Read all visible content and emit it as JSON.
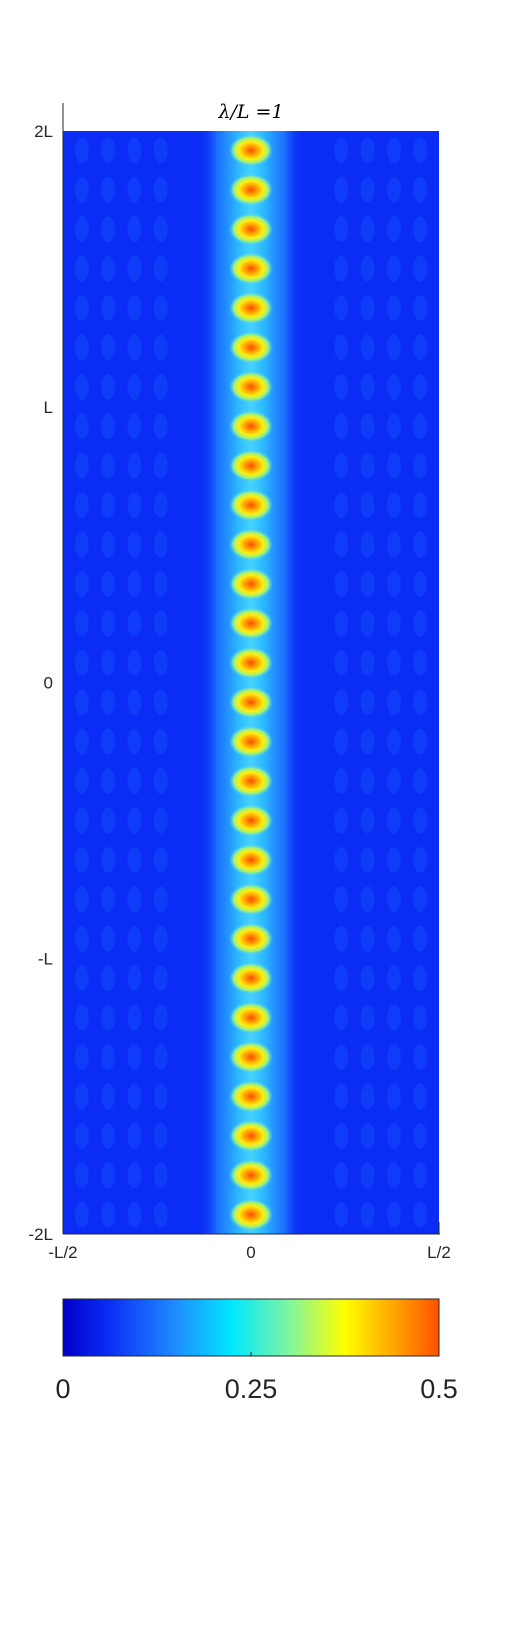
{
  "chart_data": {
    "type": "heatmap",
    "title": "λ/L =1",
    "xlabel": "",
    "ylabel": "",
    "x_ticks": [
      "-L/2",
      "0",
      "L/2"
    ],
    "y_ticks": [
      "-2L",
      "-L",
      "0",
      "L",
      "2L"
    ],
    "xlim": [
      -0.5,
      0.5
    ],
    "ylim": [
      -2,
      2
    ],
    "colormap": "jet",
    "color_range": [
      0,
      0.5
    ],
    "colorbar": {
      "orientation": "horizontal",
      "position": "bottom",
      "ticks": [
        "0",
        "0.25",
        "0.5"
      ]
    },
    "description_values": {
      "background_level": 0.03,
      "band_center_x": 0,
      "band_half_width": 0.12,
      "band_level": 0.2,
      "spot_peak_level": 0.45,
      "spot_count": 28,
      "spot_y_first": -1.93,
      "spot_y_last": 1.93
    },
    "grid": false
  },
  "colors": {
    "background_blue": "#0a2cf4",
    "band_cyan": "#29b8ff",
    "spot_yellow": "#ffd800",
    "spot_orange": "#ff5500"
  }
}
